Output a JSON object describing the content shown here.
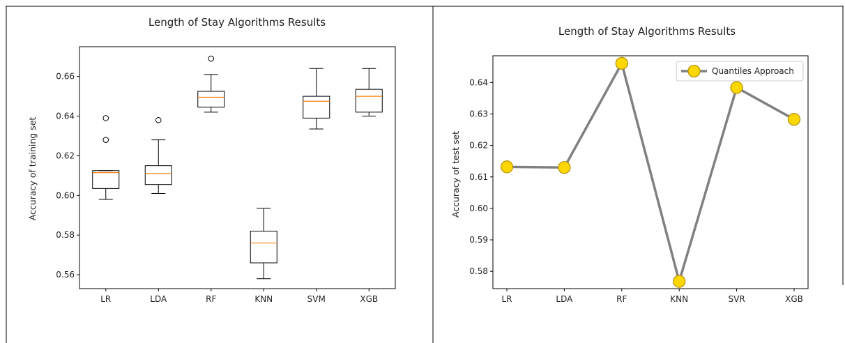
{
  "chart_data": [
    {
      "type": "box",
      "title": "Length of Stay Algorithms Results",
      "xlabel": "",
      "ylabel": "Accuracy of training set",
      "ylim": [
        0.553,
        0.675
      ],
      "yticks": [
        0.56,
        0.58,
        0.6,
        0.62,
        0.64,
        0.66
      ],
      "ytick_labels": [
        "0.56",
        "0.58",
        "0.60",
        "0.62",
        "0.64",
        "0.66"
      ],
      "categories": [
        "LR",
        "LDA",
        "RF",
        "KNN",
        "SVM",
        "XGB"
      ],
      "boxes": [
        {
          "whisker_low": 0.598,
          "q1": 0.6035,
          "median": 0.6115,
          "q3": 0.6125,
          "whisker_high": 0.6125,
          "fliers": [
            0.628,
            0.639
          ]
        },
        {
          "whisker_low": 0.601,
          "q1": 0.6055,
          "median": 0.611,
          "q3": 0.615,
          "whisker_high": 0.628,
          "fliers": [
            0.638
          ]
        },
        {
          "whisker_low": 0.642,
          "q1": 0.6445,
          "median": 0.6495,
          "q3": 0.6525,
          "whisker_high": 0.661,
          "fliers": [
            0.669
          ]
        },
        {
          "whisker_low": 0.558,
          "q1": 0.566,
          "median": 0.576,
          "q3": 0.582,
          "whisker_high": 0.5935,
          "fliers": []
        },
        {
          "whisker_low": 0.6335,
          "q1": 0.639,
          "median": 0.6475,
          "q3": 0.65,
          "whisker_high": 0.664,
          "fliers": []
        },
        {
          "whisker_low": 0.64,
          "q1": 0.642,
          "median": 0.65,
          "q3": 0.6535,
          "whisker_high": 0.664,
          "fliers": []
        }
      ],
      "colors": {
        "box": "#000000",
        "median": "#ff7f0e"
      }
    },
    {
      "type": "line",
      "title": "Length of Stay Algorithms Results",
      "xlabel": "",
      "ylabel": "Accuracy of test set",
      "ylim": [
        0.5745,
        0.6485
      ],
      "yticks": [
        0.58,
        0.59,
        0.6,
        0.61,
        0.62,
        0.63,
        0.64
      ],
      "ytick_labels": [
        "0.58",
        "0.59",
        "0.60",
        "0.61",
        "0.62",
        "0.63",
        "0.64"
      ],
      "categories": [
        "LR",
        "LDA",
        "RF",
        "KNN",
        "SVR",
        "XGB"
      ],
      "series": [
        {
          "name": "Quantiles Approach",
          "values": [
            0.6132,
            0.613,
            0.6461,
            0.5768,
            0.6384,
            0.6283
          ]
        }
      ],
      "legend_position": "top-right",
      "colors": {
        "line": "#808080",
        "marker_fill": "#ffd700",
        "marker_edge": "#b8960c"
      }
    }
  ]
}
